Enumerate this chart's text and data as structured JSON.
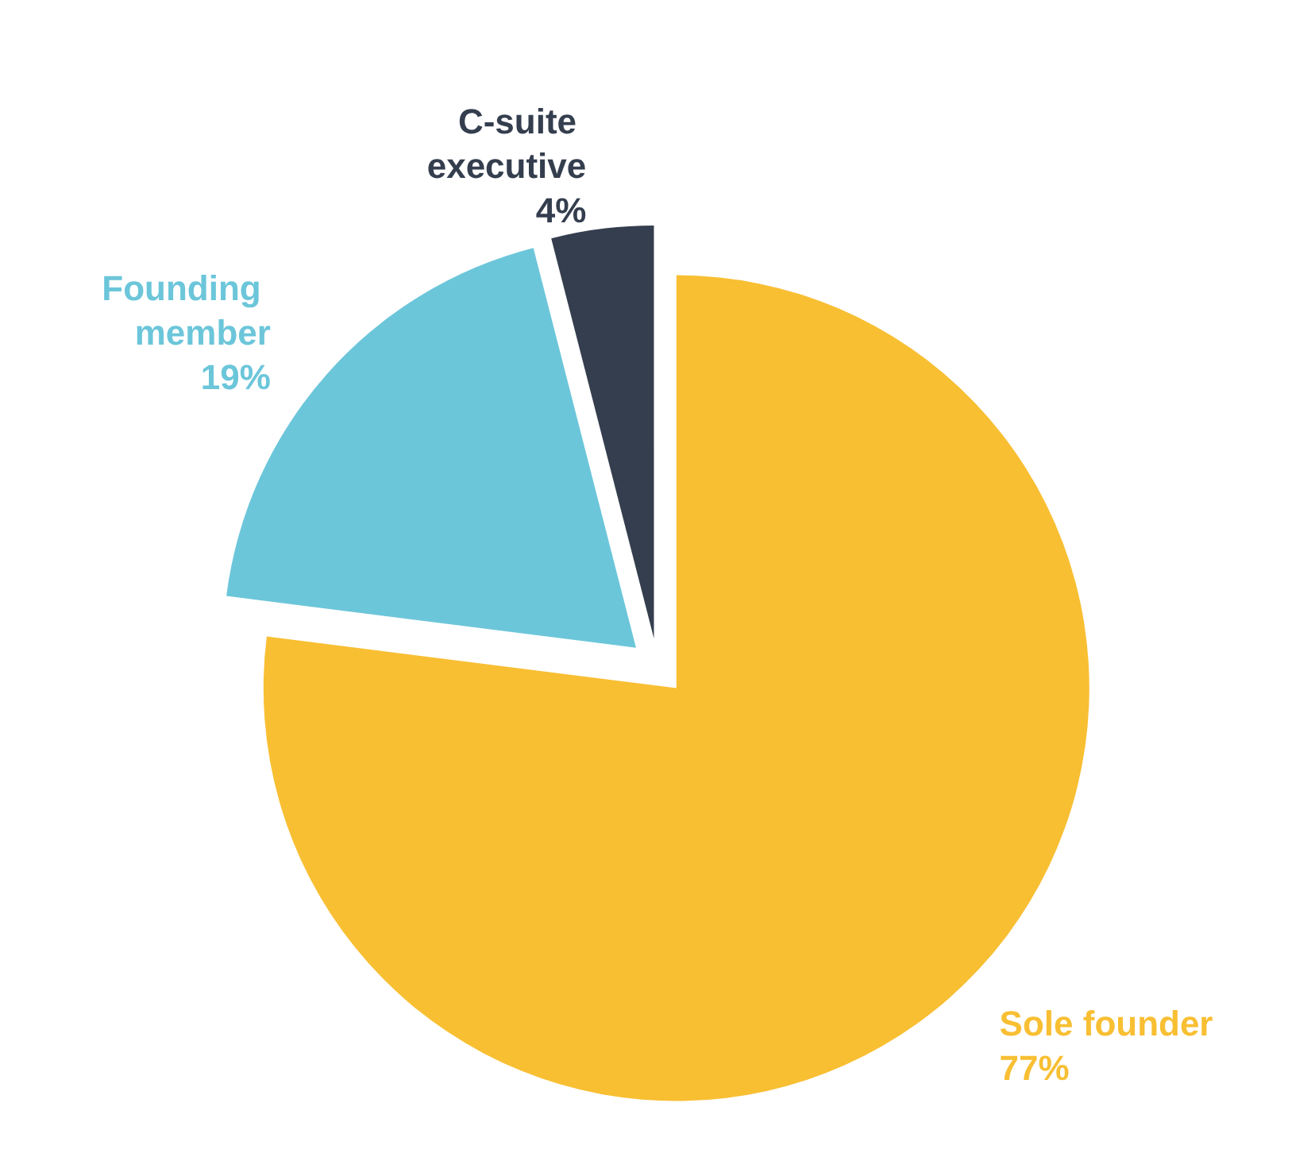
{
  "chart_data": {
    "type": "pie",
    "categories": [
      "Sole founder",
      "Founding member",
      "C-suite executive"
    ],
    "values": [
      77,
      19,
      4
    ],
    "colors": [
      "#f8bf33",
      "#6cc6da",
      "#343e4e"
    ],
    "value_labels": [
      "77%",
      "19%",
      "4%"
    ],
    "legend": false
  }
}
